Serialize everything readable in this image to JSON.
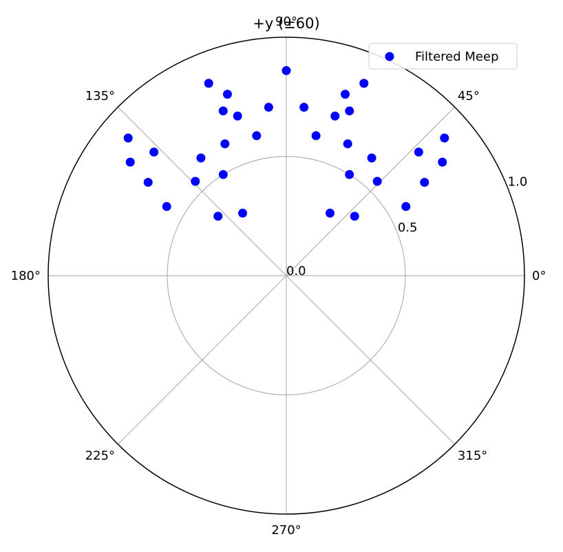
{
  "chart_data": {
    "type": "scatter",
    "projection": "polar",
    "title": "+y (±60)",
    "theta_unit": "degrees",
    "theta_ticks": [
      0,
      45,
      90,
      135,
      180,
      225,
      270,
      315
    ],
    "theta_tick_labels": [
      "0°",
      "45°",
      "90°",
      "135°",
      "180°",
      "225°",
      "270°",
      "315°"
    ],
    "r_ticks": [
      0.0,
      0.5,
      1.0
    ],
    "r_tick_labels": [
      "0.0",
      "0.5",
      "1.0"
    ],
    "rlim": [
      0,
      1.0
    ],
    "grid": true,
    "legend": {
      "placement": "top-right",
      "entries": [
        "Filtered Meep"
      ]
    },
    "series_color": "#0000ff",
    "series": [
      {
        "name": "Filtered Meep",
        "points": [
          {
            "theta": 90.0,
            "r": 0.86
          },
          {
            "theta": 96.0,
            "r": 0.71
          },
          {
            "theta": 84.0,
            "r": 0.71
          },
          {
            "theta": 102.0,
            "r": 0.6
          },
          {
            "theta": 78.0,
            "r": 0.6
          },
          {
            "theta": 107.0,
            "r": 0.7
          },
          {
            "theta": 73.0,
            "r": 0.7
          },
          {
            "theta": 108.0,
            "r": 0.8
          },
          {
            "theta": 72.0,
            "r": 0.8
          },
          {
            "theta": 111.0,
            "r": 0.74
          },
          {
            "theta": 69.0,
            "r": 0.74
          },
          {
            "theta": 112.0,
            "r": 0.87
          },
          {
            "theta": 68.0,
            "r": 0.87
          },
          {
            "theta": 115.0,
            "r": 0.61
          },
          {
            "theta": 65.0,
            "r": 0.61
          },
          {
            "theta": 126.0,
            "r": 0.61
          },
          {
            "theta": 54.0,
            "r": 0.61
          },
          {
            "theta": 122.0,
            "r": 0.5
          },
          {
            "theta": 58.0,
            "r": 0.5
          },
          {
            "theta": 125.0,
            "r": 0.32
          },
          {
            "theta": 55.0,
            "r": 0.32
          },
          {
            "theta": 134.0,
            "r": 0.55
          },
          {
            "theta": 46.0,
            "r": 0.55
          },
          {
            "theta": 139.0,
            "r": 0.38
          },
          {
            "theta": 41.0,
            "r": 0.38
          },
          {
            "theta": 137.0,
            "r": 0.76
          },
          {
            "theta": 43.0,
            "r": 0.76
          },
          {
            "theta": 139.0,
            "r": 0.88
          },
          {
            "theta": 41.0,
            "r": 0.88
          },
          {
            "theta": 144.0,
            "r": 0.81
          },
          {
            "theta": 36.0,
            "r": 0.81
          },
          {
            "theta": 146.0,
            "r": 0.7
          },
          {
            "theta": 34.0,
            "r": 0.7
          },
          {
            "theta": 150.0,
            "r": 0.58
          },
          {
            "theta": 30.0,
            "r": 0.58
          }
        ]
      }
    ]
  }
}
